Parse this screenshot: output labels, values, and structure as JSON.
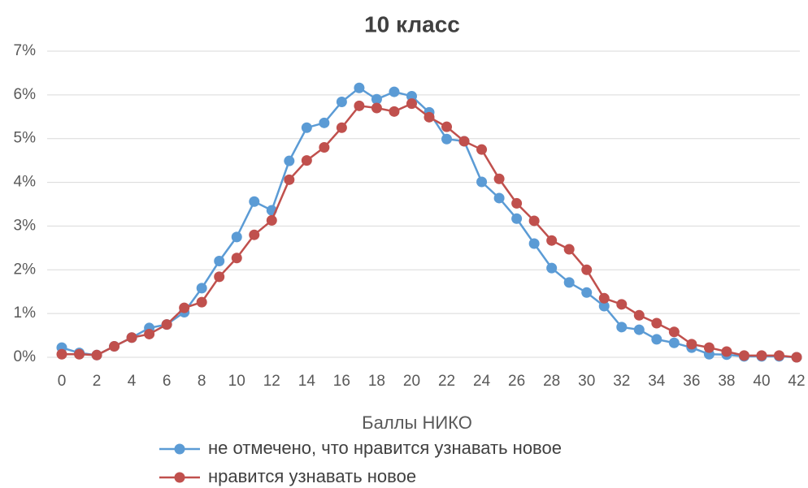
{
  "chart_data": {
    "type": "line",
    "title": "10 класс",
    "x_label": "Баллы НИКО",
    "x": [
      0,
      1,
      2,
      3,
      4,
      5,
      6,
      7,
      8,
      9,
      10,
      11,
      12,
      13,
      14,
      15,
      16,
      17,
      18,
      19,
      20,
      21,
      22,
      23,
      24,
      25,
      26,
      27,
      28,
      29,
      30,
      31,
      32,
      33,
      34,
      35,
      36,
      37,
      38,
      39,
      40,
      41,
      42
    ],
    "series": [
      {
        "name": "не отмечено, что нравится узнавать новое",
        "color": "#5b9bd5",
        "values": [
          0.22,
          0.1,
          0.05,
          0.25,
          0.45,
          0.67,
          0.75,
          1.03,
          1.58,
          2.2,
          2.75,
          3.56,
          3.36,
          4.49,
          5.25,
          5.36,
          5.84,
          6.16,
          5.9,
          6.07,
          5.97,
          5.6,
          4.99,
          4.94,
          4.01,
          3.64,
          3.17,
          2.6,
          2.04,
          1.71,
          1.48,
          1.17,
          0.69,
          0.63,
          0.41,
          0.33,
          0.22,
          0.07,
          0.06,
          0.02,
          0.02,
          0.02,
          0
        ]
      },
      {
        "name": "нравится узнавать новое",
        "color": "#c0504d",
        "values": [
          0.07,
          0.07,
          0.05,
          0.25,
          0.45,
          0.53,
          0.75,
          1.13,
          1.26,
          1.84,
          2.27,
          2.8,
          3.13,
          4.06,
          4.5,
          4.8,
          5.25,
          5.75,
          5.7,
          5.62,
          5.8,
          5.49,
          5.27,
          4.94,
          4.75,
          4.08,
          3.52,
          3.12,
          2.67,
          2.47,
          2.0,
          1.35,
          1.21,
          0.96,
          0.78,
          0.58,
          0.3,
          0.22,
          0.13,
          0.04,
          0.04,
          0.04,
          0
        ]
      }
    ],
    "xlim": [
      0,
      42
    ],
    "xticks": [
      0,
      2,
      4,
      6,
      8,
      10,
      12,
      14,
      16,
      18,
      20,
      22,
      24,
      26,
      28,
      30,
      32,
      34,
      36,
      38,
      40,
      42
    ],
    "ylim": [
      0,
      7
    ],
    "yticks": [
      {
        "value": 0,
        "label": "0%"
      },
      {
        "value": 1,
        "label": "1%"
      },
      {
        "value": 2,
        "label": "2%"
      },
      {
        "value": 3,
        "label": "3%"
      },
      {
        "value": 4,
        "label": "4%"
      },
      {
        "value": 5,
        "label": "5%"
      },
      {
        "value": 6,
        "label": "6%"
      },
      {
        "value": 7,
        "label": "7%"
      }
    ],
    "grid": true,
    "legend": "bottom"
  }
}
